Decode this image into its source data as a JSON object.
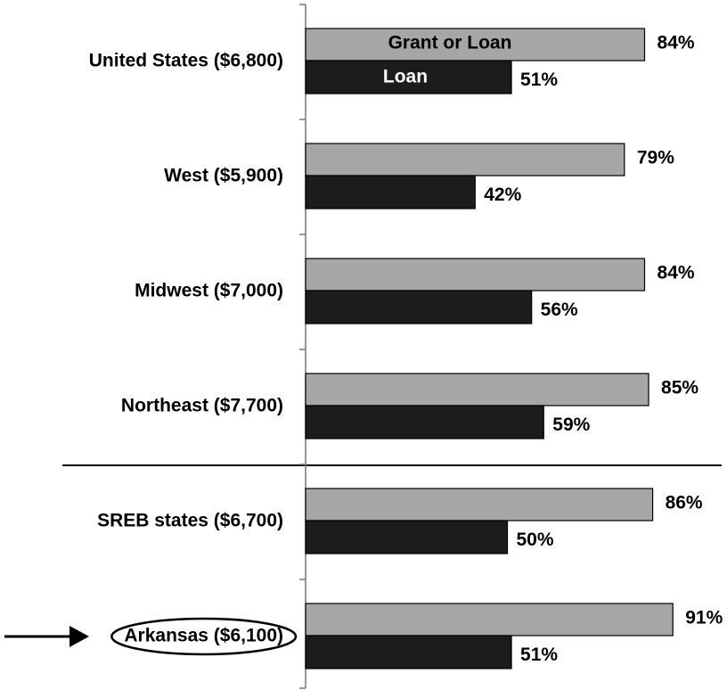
{
  "chart_data": {
    "type": "bar",
    "orientation": "horizontal",
    "categories": [
      "United States ($6,800)",
      "West ($5,900)",
      "Midwest ($7,000)",
      "Northeast ($7,700)",
      "SREB states ($6,700)",
      "Arkansas ($6,100)"
    ],
    "series": [
      {
        "name": "Grant or Loan",
        "color": "#a6a6a6",
        "values": [
          84,
          79,
          84,
          85,
          86,
          91
        ],
        "value_labels": [
          "84%",
          "79%",
          "84%",
          "85%",
          "86%",
          "91%"
        ]
      },
      {
        "name": "Loan",
        "color": "#1c1c1c",
        "values": [
          51,
          42,
          56,
          59,
          50,
          51
        ],
        "value_labels": [
          "51%",
          "42%",
          "56%",
          "59%",
          "50%",
          "51%"
        ]
      }
    ],
    "xlim": [
      0,
      100
    ]
  }
}
